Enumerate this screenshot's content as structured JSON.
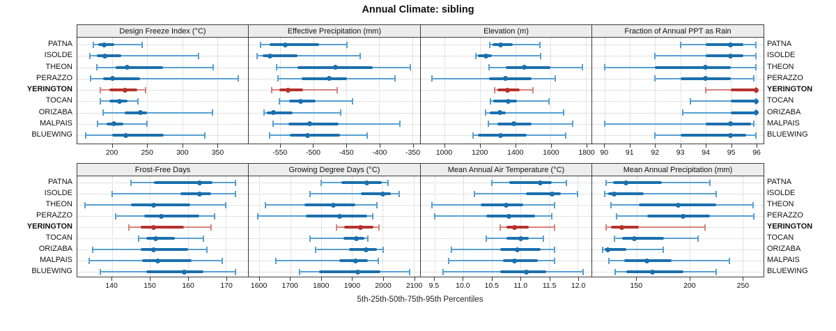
{
  "title": "Annual Climate: sibling",
  "footer": "5th-25th-50th-75th-95th Percentiles",
  "sites": [
    "PATNA",
    "ISOLDE",
    "THEON",
    "PERAZZO",
    "YERINGTON",
    "TOCAN",
    "ORIZABA",
    "MALPAIS",
    "BLUEWING"
  ],
  "highlighted_site": "YERINGTON",
  "percentile_labels": [
    "5th",
    "25th",
    "50th",
    "75th",
    "95th"
  ],
  "colors": {
    "blue_whisker": "#579fd0",
    "blue_box": "#1b6fad",
    "red_whisker": "#d4827e",
    "red_box": "#b5322c",
    "strip_bg": "#ededed",
    "grid": "#c6c6c6",
    "border": "#3c3c3c"
  },
  "chart_data": [
    {
      "type": "dotplot-interval",
      "panel_row": 0,
      "title": "Design Freeze Index (°C)",
      "xlim": [
        150,
        394
      ],
      "ticks": [
        {
          "v": 200,
          "label": "200"
        },
        {
          "v": 250,
          "label": "250"
        },
        {
          "v": 300,
          "label": "300"
        },
        {
          "v": 350,
          "label": "350"
        }
      ],
      "series": [
        {
          "site": "PATNA",
          "values": [
            173,
            180,
            188,
            203,
            243
          ]
        },
        {
          "site": "ISOLDE",
          "values": [
            168,
            178,
            189,
            213,
            323
          ]
        },
        {
          "site": "THEON",
          "values": [
            178,
            205,
            221,
            273,
            344
          ]
        },
        {
          "site": "PERAZZO",
          "values": [
            169,
            187,
            200,
            240,
            380
          ]
        },
        {
          "site": "YERINGTON",
          "values": [
            183,
            196,
            218,
            236,
            248
          ]
        },
        {
          "site": "TOCAN",
          "values": [
            183,
            196,
            210,
            222,
            237
          ]
        },
        {
          "site": "ORIZABA",
          "values": [
            187,
            218,
            240,
            250,
            343
          ]
        },
        {
          "site": "MALPAIS",
          "values": [
            179,
            192,
            202,
            216,
            250
          ]
        },
        {
          "site": "BLUEWING",
          "values": [
            162,
            200,
            219,
            273,
            332
          ]
        }
      ]
    },
    {
      "type": "dotplot-interval",
      "panel_row": 0,
      "title": "Effective Precipitation (mm)",
      "xlim": [
        -598,
        -338
      ],
      "ticks": [
        {
          "v": -550,
          "label": "-550"
        },
        {
          "v": -500,
          "label": "-500"
        },
        {
          "v": -450,
          "label": "-450"
        },
        {
          "v": -400,
          "label": "-400"
        },
        {
          "v": -350,
          "label": "-350"
        }
      ],
      "series": [
        {
          "site": "PATNA",
          "values": [
            -580,
            -566,
            -543,
            -491,
            -449
          ]
        },
        {
          "site": "ISOLDE",
          "values": [
            -585,
            -577,
            -566,
            -524,
            -429
          ]
        },
        {
          "site": "THEON",
          "values": [
            -556,
            -524,
            -466,
            -410,
            -353
          ]
        },
        {
          "site": "PERAZZO",
          "values": [
            -554,
            -518,
            -476,
            -449,
            -376
          ]
        },
        {
          "site": "YERINGTON",
          "values": [
            -563,
            -552,
            -538,
            -516,
            -464
          ]
        },
        {
          "site": "TOCAN",
          "values": [
            -552,
            -537,
            -519,
            -497,
            -441
          ]
        },
        {
          "site": "ORIZABA",
          "values": [
            -575,
            -570,
            -561,
            -531,
            -459
          ]
        },
        {
          "site": "MALPAIS",
          "values": [
            -561,
            -538,
            -506,
            -462,
            -369
          ]
        },
        {
          "site": "BLUEWING",
          "values": [
            -566,
            -536,
            -509,
            -460,
            -418
          ]
        }
      ]
    },
    {
      "type": "dotplot-interval",
      "panel_row": 0,
      "title": "Elevation (m)",
      "xlim": [
        865,
        1831
      ],
      "ticks": [
        {
          "v": 1000,
          "label": "1000"
        },
        {
          "v": 1200,
          "label": "1200"
        },
        {
          "v": 1400,
          "label": "1400"
        },
        {
          "v": 1600,
          "label": "1600"
        },
        {
          "v": 1800,
          "label": "1800"
        }
      ],
      "series": [
        {
          "site": "PATNA",
          "values": [
            1255,
            1270,
            1315,
            1385,
            1540
          ]
        },
        {
          "site": "ISOLDE",
          "values": [
            1175,
            1190,
            1232,
            1267,
            1545
          ]
        },
        {
          "site": "THEON",
          "values": [
            1252,
            1345,
            1450,
            1600,
            1780
          ]
        },
        {
          "site": "PERAZZO",
          "values": [
            930,
            1250,
            1346,
            1490,
            1626
          ]
        },
        {
          "site": "YERINGTON",
          "values": [
            1283,
            1300,
            1356,
            1424,
            1500
          ]
        },
        {
          "site": "TOCAN",
          "values": [
            1261,
            1275,
            1359,
            1410,
            1590
          ]
        },
        {
          "site": "ORIZABA",
          "values": [
            1232,
            1254,
            1313,
            1345,
            1674
          ]
        },
        {
          "site": "MALPAIS",
          "values": [
            1248,
            1300,
            1390,
            1490,
            1723
          ]
        },
        {
          "site": "BLUEWING",
          "values": [
            1160,
            1190,
            1317,
            1463,
            1687
          ]
        }
      ]
    },
    {
      "type": "dotplot-interval",
      "panel_row": 0,
      "title": "Fraction of Annual PPT as Rain",
      "xlim": [
        89.5,
        96.3
      ],
      "ticks": [
        {
          "v": 90,
          "label": "90"
        },
        {
          "v": 91,
          "label": "91"
        },
        {
          "v": 92,
          "label": "92"
        },
        {
          "v": 93,
          "label": "93"
        },
        {
          "v": 94,
          "label": "94"
        },
        {
          "v": 95,
          "label": "95"
        },
        {
          "v": 96,
          "label": "96"
        }
      ],
      "series": [
        {
          "site": "PATNA",
          "values": [
            93,
            94,
            95,
            95.5,
            96
          ]
        },
        {
          "site": "ISOLDE",
          "values": [
            92,
            94,
            95,
            95.5,
            96
          ]
        },
        {
          "site": "THEON",
          "values": [
            90,
            92,
            94,
            95,
            96
          ]
        },
        {
          "site": "PERAZZO",
          "values": [
            92,
            93,
            94,
            95,
            95.9
          ]
        },
        {
          "site": "YERINGTON",
          "values": [
            94,
            95,
            96,
            96,
            96
          ]
        },
        {
          "site": "TOCAN",
          "values": [
            93.4,
            95,
            96,
            96,
            96
          ]
        },
        {
          "site": "ORIZABA",
          "values": [
            93.1,
            95,
            96,
            96,
            96
          ]
        },
        {
          "site": "MALPAIS",
          "values": [
            90,
            94,
            95,
            95.8,
            95.9
          ]
        },
        {
          "site": "BLUEWING",
          "values": [
            92,
            93,
            95,
            95.6,
            96
          ]
        }
      ]
    },
    {
      "type": "dotplot-interval",
      "panel_row": 1,
      "title": "Frost-Free Days",
      "xlim": [
        130.9,
        175.8
      ],
      "ticks": [
        {
          "v": 140,
          "label": "140"
        },
        {
          "v": 150,
          "label": "150"
        },
        {
          "v": 160,
          "label": "160"
        },
        {
          "v": 170,
          "label": "170"
        }
      ],
      "series": [
        {
          "site": "PATNA",
          "values": [
            145,
            151,
            163,
            166.5,
            172.5
          ]
        },
        {
          "site": "ISOLDE",
          "values": [
            140,
            158,
            163,
            166,
            172.5
          ]
        },
        {
          "site": "THEON",
          "values": [
            133,
            145,
            151,
            160.5,
            170
          ]
        },
        {
          "site": "PERAZZO",
          "values": [
            141,
            148.5,
            153,
            163,
            167
          ]
        },
        {
          "site": "YERINGTON",
          "values": [
            144.5,
            147.5,
            151,
            159,
            166
          ]
        },
        {
          "site": "TOCAN",
          "values": [
            147,
            149,
            151.5,
            156.5,
            164
          ]
        },
        {
          "site": "ORIZABA",
          "values": [
            135,
            147.5,
            151,
            160,
            165
          ]
        },
        {
          "site": "MALPAIS",
          "values": [
            134,
            148,
            152,
            161,
            169
          ]
        },
        {
          "site": "BLUEWING",
          "values": [
            137,
            149,
            159,
            164,
            172.5
          ]
        }
      ]
    },
    {
      "type": "dotplot-interval",
      "panel_row": 1,
      "title": "Growing Degree Days (°C)",
      "xlim": [
        1565,
        2121
      ],
      "ticks": [
        {
          "v": 1600,
          "label": "1600"
        },
        {
          "v": 1700,
          "label": "1700"
        },
        {
          "v": 1800,
          "label": "1800"
        },
        {
          "v": 1900,
          "label": "1900"
        },
        {
          "v": 2000,
          "label": "2000"
        },
        {
          "v": 2100,
          "label": "2100"
        }
      ],
      "series": [
        {
          "site": "PATNA",
          "values": [
            1800,
            1865,
            1947,
            1997,
            2017
          ]
        },
        {
          "site": "ISOLDE",
          "values": [
            1765,
            1930,
            2000,
            2027,
            2053
          ]
        },
        {
          "site": "THEON",
          "values": [
            1620,
            1745,
            1840,
            1910,
            1980
          ]
        },
        {
          "site": "PERAZZO",
          "values": [
            1595,
            1750,
            1860,
            1950,
            1967
          ]
        },
        {
          "site": "YERINGTON",
          "values": [
            1850,
            1875,
            1928,
            1970,
            1988
          ]
        },
        {
          "site": "TOCAN",
          "values": [
            1764,
            1873,
            1914,
            1941,
            1952
          ]
        },
        {
          "site": "ORIZABA",
          "values": [
            1783,
            1890,
            1946,
            1982,
            2001
          ]
        },
        {
          "site": "MALPAIS",
          "values": [
            1653,
            1858,
            1912,
            1952,
            1986
          ]
        },
        {
          "site": "BLUEWING",
          "values": [
            1730,
            1794,
            1918,
            1993,
            2087
          ]
        }
      ]
    },
    {
      "type": "dotplot-interval",
      "panel_row": 1,
      "title": "Mean Annual Air Temperature (°C)",
      "xlim": [
        9.26,
        12.24
      ],
      "ticks": [
        {
          "v": 9.5,
          "label": "9.5"
        },
        {
          "v": 10.0,
          "label": "10.0"
        },
        {
          "v": 10.5,
          "label": "10.5"
        },
        {
          "v": 11.0,
          "label": "11.0"
        },
        {
          "v": 11.5,
          "label": "11.5"
        },
        {
          "v": 12.0,
          "label": "12.0"
        }
      ],
      "series": [
        {
          "site": "PATNA",
          "values": [
            10.5,
            10.8,
            11.35,
            11.55,
            11.8
          ]
        },
        {
          "site": "ISOLDE",
          "values": [
            10.2,
            11.1,
            11.55,
            11.7,
            12.0
          ]
        },
        {
          "site": "THEON",
          "values": [
            9.45,
            10.3,
            10.75,
            11.05,
            11.6
          ]
        },
        {
          "site": "PERAZZO",
          "values": [
            9.5,
            10.4,
            10.8,
            11.25,
            11.55
          ]
        },
        {
          "site": "YERINGTON",
          "values": [
            10.65,
            10.75,
            10.9,
            11.15,
            11.6
          ]
        },
        {
          "site": "TOCAN",
          "values": [
            10.4,
            10.75,
            11.0,
            11.15,
            11.4
          ]
        },
        {
          "site": "ORIZABA",
          "values": [
            9.8,
            10.65,
            10.95,
            11.35,
            11.6
          ]
        },
        {
          "site": "MALPAIS",
          "values": [
            9.75,
            10.7,
            10.9,
            11.3,
            11.6
          ]
        },
        {
          "site": "BLUEWING",
          "values": [
            9.65,
            10.65,
            11.1,
            11.45,
            12.1
          ]
        }
      ]
    },
    {
      "type": "dotplot-interval",
      "panel_row": 1,
      "title": "Mean Annual Precipitation (mm)",
      "xlim": [
        108,
        270
      ],
      "ticks": [
        {
          "v": 150,
          "label": "150"
        },
        {
          "v": 200,
          "label": "200"
        },
        {
          "v": 250,
          "label": "250"
        }
      ],
      "series": [
        {
          "site": "PATNA",
          "values": [
            121,
            128,
            140,
            174,
            219
          ]
        },
        {
          "site": "ISOLDE",
          "values": [
            120,
            123,
            129,
            157,
            225
          ]
        },
        {
          "site": "THEON",
          "values": [
            126,
            152,
            189,
            225,
            260
          ]
        },
        {
          "site": "PERAZZO",
          "values": [
            131,
            160,
            194,
            219,
            261
          ]
        },
        {
          "site": "YERINGTON",
          "values": [
            121,
            126,
            136,
            152,
            215
          ]
        },
        {
          "site": "TOCAN",
          "values": [
            129,
            136,
            148,
            176,
            208
          ]
        },
        {
          "site": "ORIZABA",
          "values": [
            118,
            120,
            123,
            140,
            175
          ]
        },
        {
          "site": "MALPAIS",
          "values": [
            124,
            138,
            160,
            183,
            238
          ]
        },
        {
          "site": "BLUEWING",
          "values": [
            130,
            140,
            165,
            194,
            225
          ]
        }
      ]
    }
  ]
}
